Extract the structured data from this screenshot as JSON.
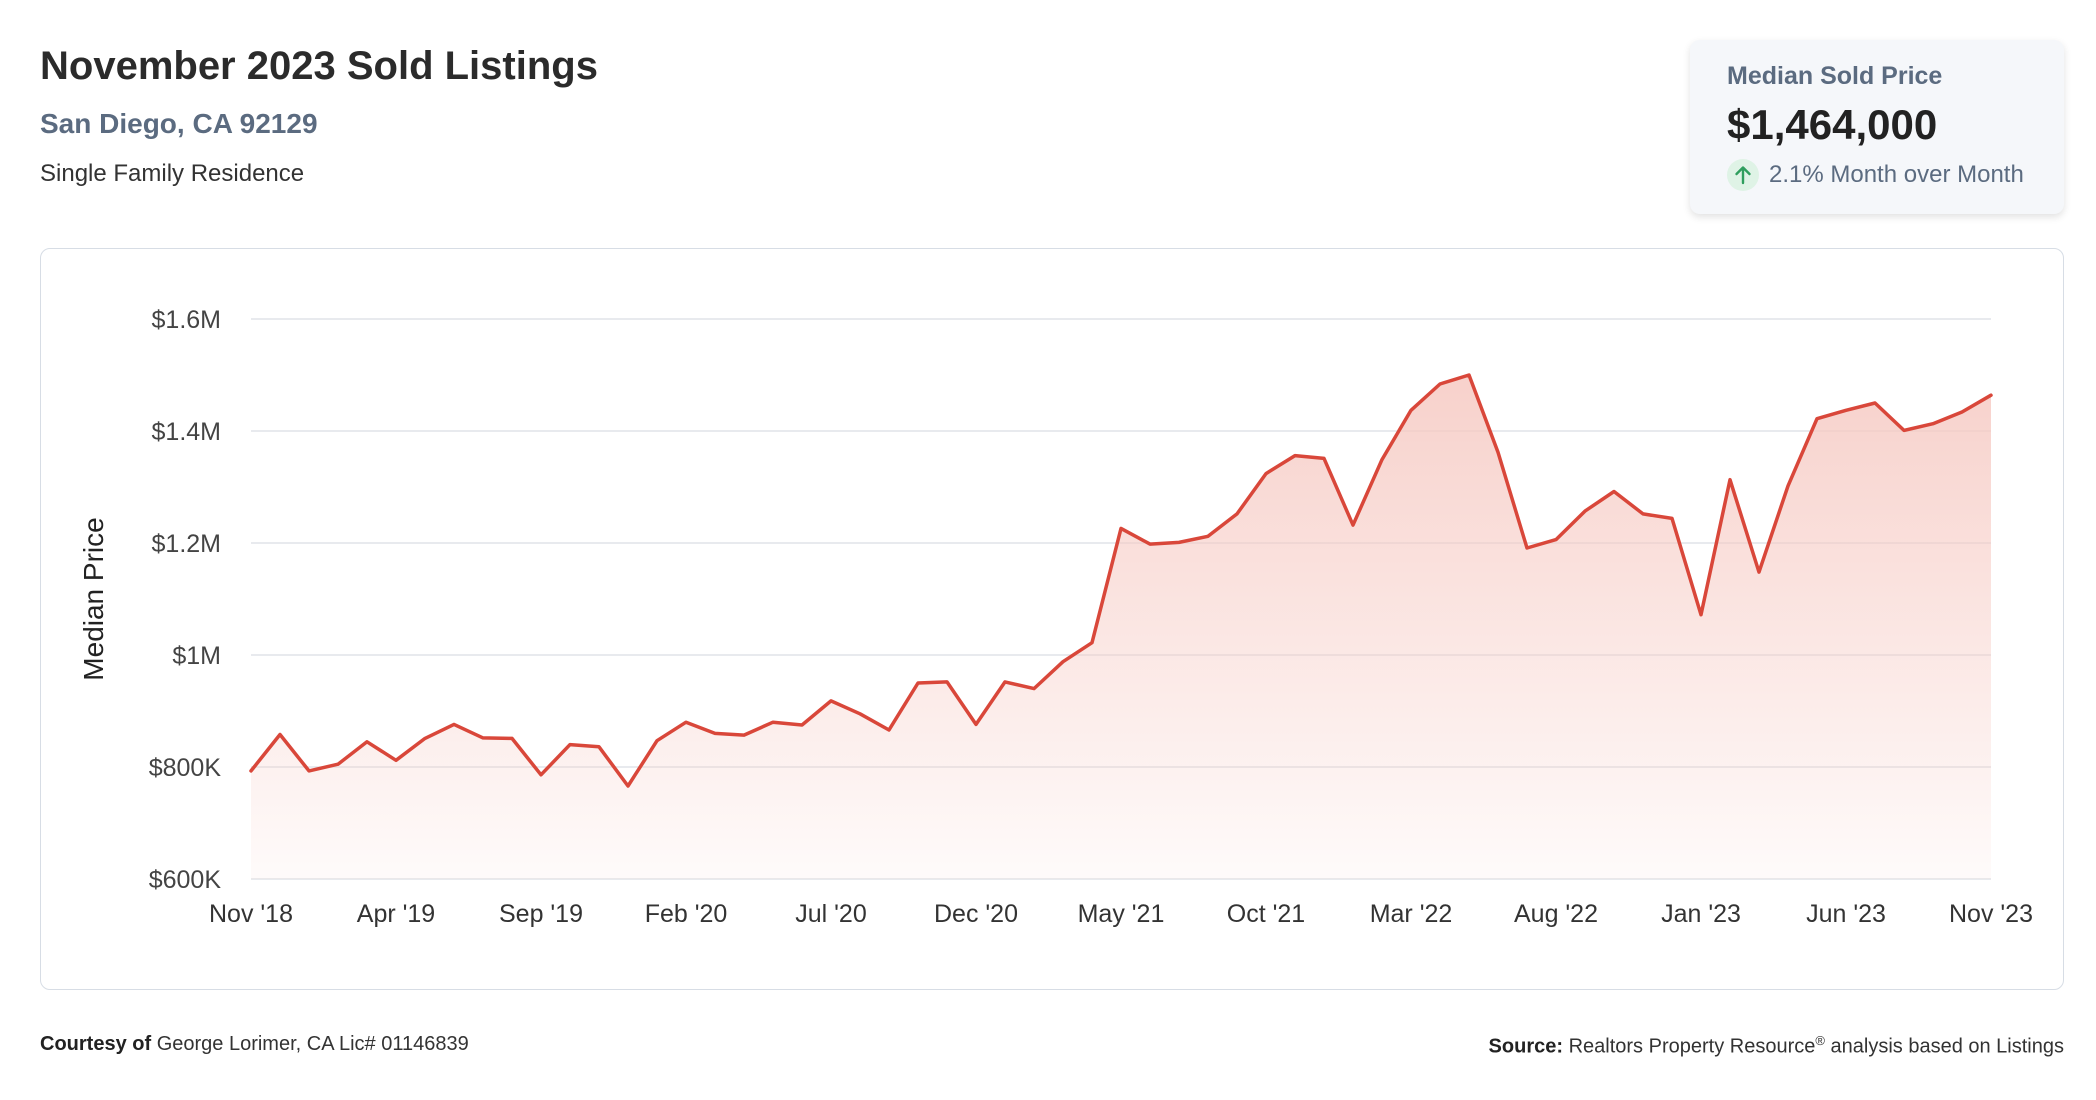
{
  "header": {
    "title": "November 2023 Sold Listings",
    "location": "San Diego, CA 92129",
    "property_type": "Single Family Residence"
  },
  "kpi": {
    "label": "Median Sold Price",
    "value": "$1,464,000",
    "change": "2.1% Month over Month",
    "icon": "arrow-up-icon"
  },
  "footer": {
    "courtesy_label": "Courtesy of",
    "courtesy_text": "George Lorimer, CA Lic# 01146839",
    "source_label": "Source:",
    "source_text_1": "Realtors Property Resource",
    "source_reg": "®",
    "source_text_2": " analysis based on Listings"
  },
  "colors": {
    "line": "#d9473a",
    "fill_top": "#f6c9c2",
    "grid": "#e1e4e8",
    "axis_text": "#444444"
  },
  "chart_data": {
    "type": "area",
    "title": "",
    "xlabel": "",
    "ylabel": "Median Price",
    "ylim": [
      600000,
      1600000
    ],
    "y_ticks": [
      {
        "value": 600000,
        "label": "$600K"
      },
      {
        "value": 800000,
        "label": "$800K"
      },
      {
        "value": 1000000,
        "label": "$1M"
      },
      {
        "value": 1200000,
        "label": "$1.2M"
      },
      {
        "value": 1400000,
        "label": "$1.4M"
      },
      {
        "value": 1600000,
        "label": "$1.6M"
      }
    ],
    "x_ticks": [
      "Nov '18",
      "Apr '19",
      "Sep '19",
      "Feb '20",
      "Jul '20",
      "Dec '20",
      "May '21",
      "Oct '21",
      "Mar '22",
      "Aug '22",
      "Jan '23",
      "Jun '23",
      "Nov '23"
    ],
    "x_tick_every": 5,
    "grid": true,
    "series": [
      {
        "values": [
          793000,
          858000,
          793000,
          805000,
          845000,
          812000,
          851000,
          876000,
          852000,
          851000,
          786000,
          840000,
          836000,
          766000,
          847000,
          880000,
          860000,
          857000,
          880000,
          875000,
          918000,
          895000,
          866000,
          950000,
          952000,
          876000,
          952000,
          940000,
          988000,
          1022000,
          1226000,
          1198000,
          1201000,
          1212000,
          1252000,
          1324000,
          1356000,
          1351000,
          1232000,
          1349000,
          1437000,
          1484000,
          1500000,
          1362000,
          1191000,
          1206000,
          1257000,
          1292000,
          1252000,
          1244000,
          1072000,
          1313000,
          1148000,
          1302000,
          1422000,
          1437000,
          1450000,
          1401000,
          1413000,
          1434000,
          1464000
        ]
      }
    ]
  }
}
